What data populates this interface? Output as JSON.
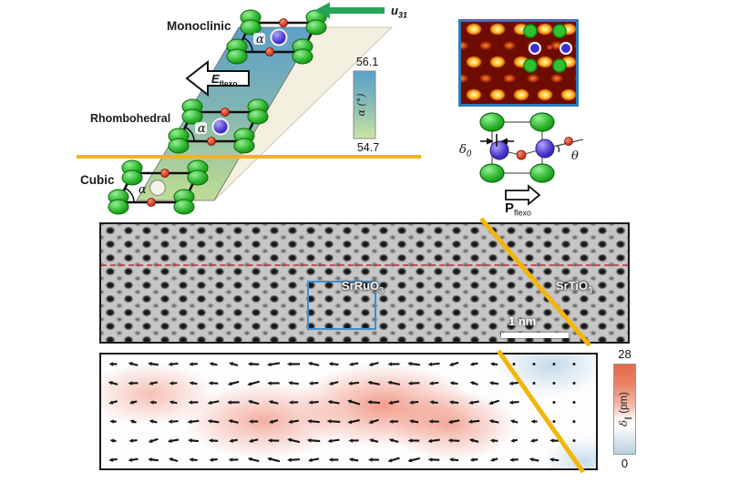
{
  "phase_diagram": {
    "monoclinic_label": "Monoclinic",
    "rhombohedral_label": "Rhombohedral",
    "cubic_label": "Cubic",
    "strain_gradient_main": "u",
    "strain_gradient_sub": "31",
    "flexo_field_main": "E",
    "flexo_field_sub": "flexo",
    "alpha_colorbar_top": "56.1",
    "alpha_colorbar_bottom": "54.7",
    "alpha_colorbar_label": "α (°)",
    "cell_angle_label": "α"
  },
  "unit_cell_inset": {
    "delta_main": "δ",
    "delta_sub": "0",
    "theta_label": "θ",
    "polarization_main": "P",
    "polarization_sub": "flexo"
  },
  "stem_image": {
    "film_main": "SrRuO",
    "film_sub": "3",
    "substrate_main": "SrTiO",
    "substrate_sub": "3",
    "scale_bar_label": "1 nm"
  },
  "displacement_map": {
    "colorbar_top": "28",
    "colorbar_bottom": "0",
    "colorbar_delta": "δ",
    "colorbar_sub": "∥",
    "colorbar_unit": "(pm)",
    "vector_field": {
      "rows": 6,
      "cols": 24
    }
  },
  "colors": {
    "yellow": "#f2b50a",
    "band_top": "#5d9fc8",
    "band_bottom": "#bedd94",
    "green_atom": "#2db52d",
    "blue_atom": "#4533cc",
    "red_atom": "#cc1604",
    "map_red": "#e4694a",
    "map_blue": "#b7cfdc",
    "border_blue": "#2b7bba"
  }
}
